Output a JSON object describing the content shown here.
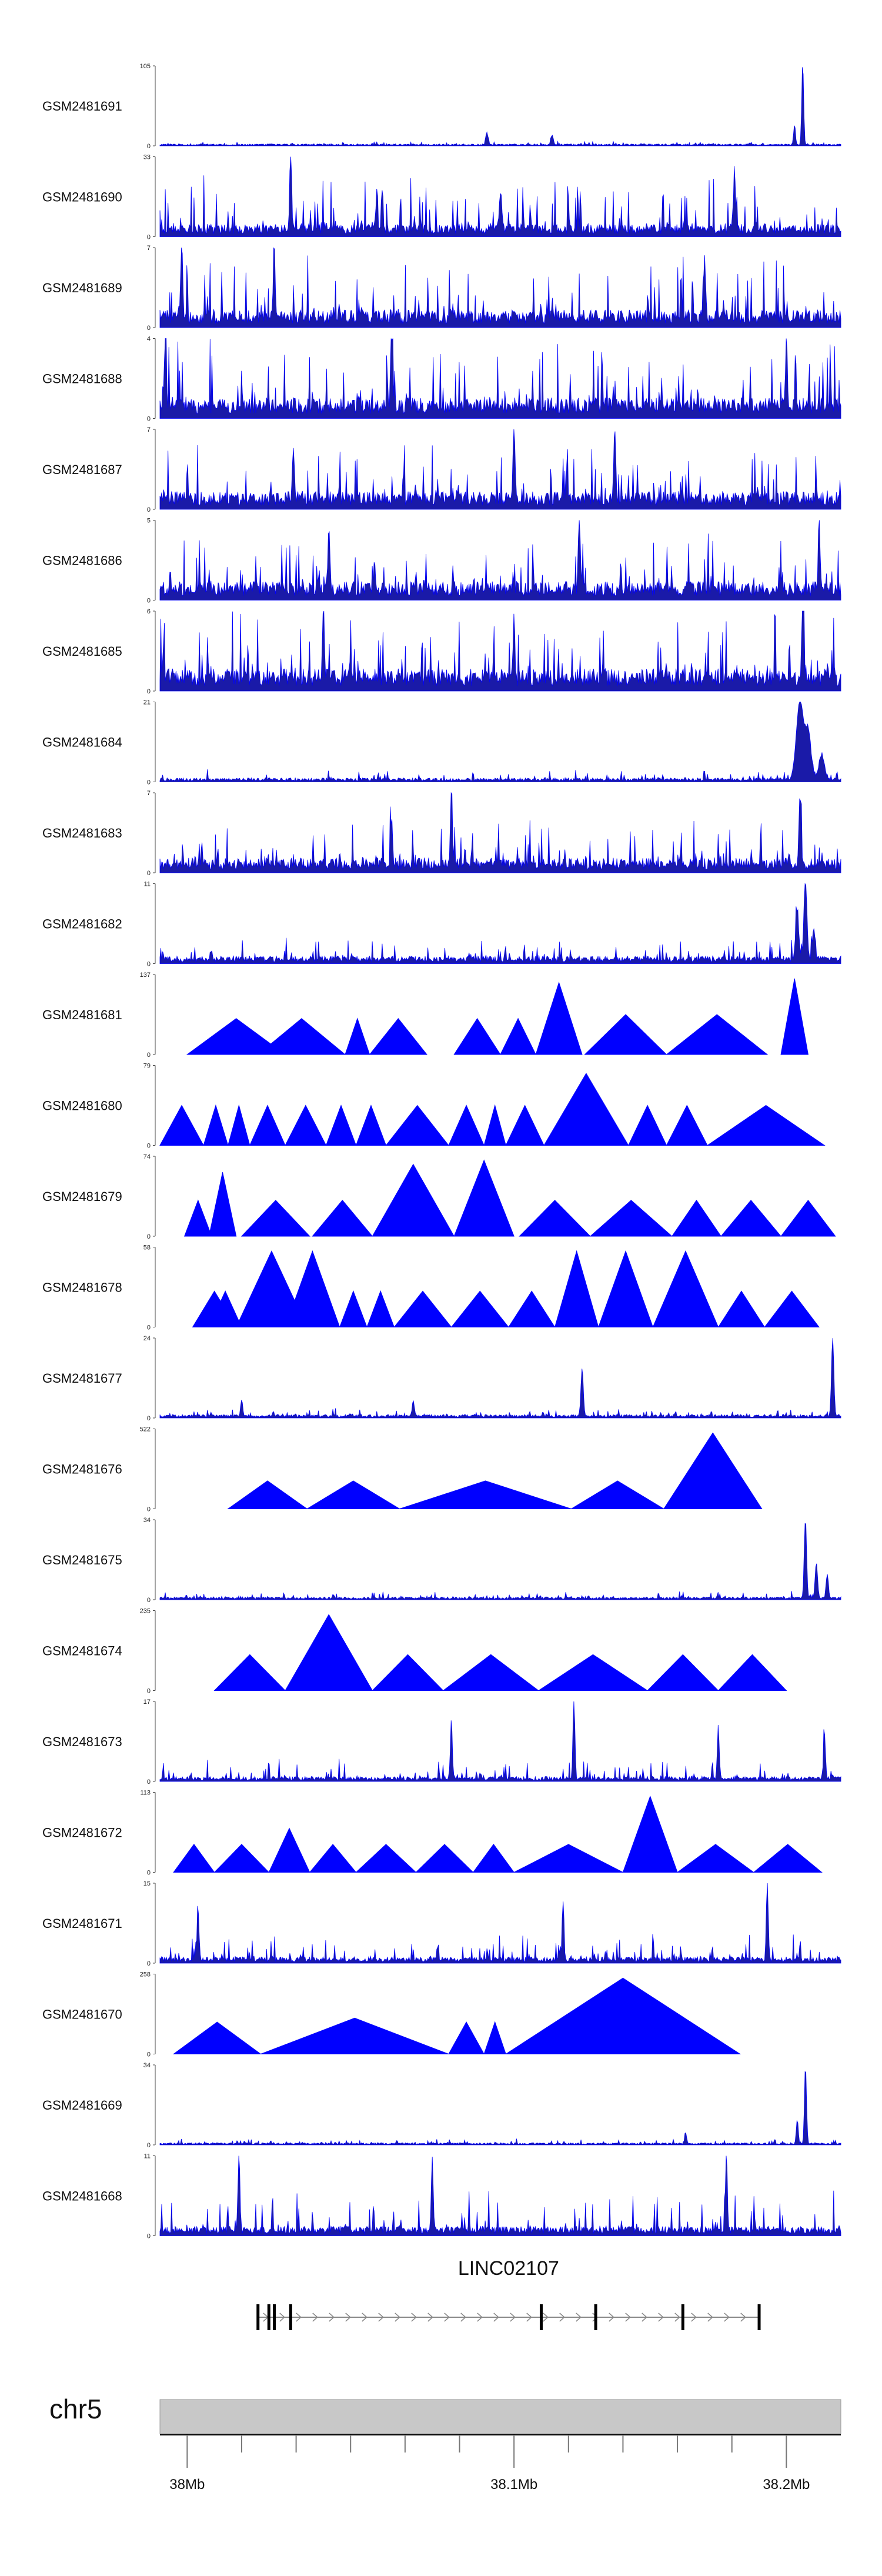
{
  "chart_data": {
    "type": "area",
    "title": "",
    "region": {
      "chromosome": "chr5",
      "start_mb": 37.97,
      "end_mb": 38.22
    },
    "tracks": [
      {
        "name": "GSM2481691",
        "ymax": 105,
        "style": "dense",
        "baseline": 2,
        "noise": 4,
        "seed": 11,
        "peaks": [
          [
            38.206,
            1.0,
            0.0005
          ],
          [
            38.203,
            0.25,
            0.0005
          ],
          [
            38.09,
            0.15,
            0.0006
          ],
          [
            38.114,
            0.12,
            0.0006
          ]
        ]
      },
      {
        "name": "GSM2481690",
        "ymax": 33,
        "style": "dense",
        "baseline": 4,
        "noise": 22,
        "seed": 12,
        "peaks": [
          [
            38.018,
            1.0,
            0.0005
          ],
          [
            38.181,
            0.65,
            0.0006
          ],
          [
            38.095,
            0.5,
            0.0006
          ]
        ]
      },
      {
        "name": "GSM2481689",
        "ymax": 7,
        "style": "dense",
        "baseline": 1.2,
        "noise": 5,
        "seed": 13,
        "peaks": [
          [
            37.978,
            1.0,
            0.0005
          ],
          [
            38.012,
            0.85,
            0.0005
          ],
          [
            38.17,
            0.7,
            0.0005
          ]
        ]
      },
      {
        "name": "GSM2481688",
        "ymax": 4,
        "style": "dense",
        "baseline": 0.8,
        "noise": 3.5,
        "seed": 14,
        "peaks": [
          [
            37.972,
            1.0,
            0.0005
          ],
          [
            38.055,
            0.9,
            0.0005
          ],
          [
            38.2,
            0.85,
            0.0005
          ]
        ]
      },
      {
        "name": "GSM2481687",
        "ymax": 7,
        "style": "dense",
        "baseline": 1.2,
        "noise": 4.5,
        "seed": 15,
        "peaks": [
          [
            38.1,
            1.0,
            0.0005
          ],
          [
            38.137,
            0.95,
            0.0005
          ],
          [
            38.019,
            0.7,
            0.0005
          ]
        ]
      },
      {
        "name": "GSM2481686",
        "ymax": 5,
        "style": "dense",
        "baseline": 0.9,
        "noise": 3.2,
        "seed": 16,
        "peaks": [
          [
            38.124,
            1.0,
            0.0005
          ],
          [
            38.212,
            0.9,
            0.0005
          ],
          [
            38.032,
            0.8,
            0.0005
          ]
        ]
      },
      {
        "name": "GSM2481685",
        "ymax": 6,
        "style": "dense",
        "baseline": 1.3,
        "noise": 4.5,
        "seed": 17,
        "peaks": [
          [
            38.206,
            1.0,
            0.0005
          ],
          [
            38.03,
            0.9,
            0.0005
          ],
          [
            38.1,
            0.75,
            0.0005
          ]
        ]
      },
      {
        "name": "GSM2481684",
        "ymax": 21,
        "style": "dense",
        "baseline": 0.8,
        "noise": 2.5,
        "seed": 18,
        "peaks": [
          [
            38.205,
            1.0,
            0.0018
          ],
          [
            38.208,
            0.6,
            0.0015
          ],
          [
            38.213,
            0.3,
            0.0015
          ]
        ]
      },
      {
        "name": "GSM2481683",
        "ymax": 7,
        "style": "dense",
        "baseline": 1.0,
        "noise": 3.5,
        "seed": 19,
        "peaks": [
          [
            38.077,
            1.0,
            0.0005
          ],
          [
            38.205,
            0.9,
            0.0006
          ],
          [
            38.055,
            0.6,
            0.0005
          ]
        ]
      },
      {
        "name": "GSM2481682",
        "ymax": 11,
        "style": "dense",
        "baseline": 0.8,
        "noise": 2.8,
        "seed": 20,
        "peaks": [
          [
            38.207,
            1.0,
            0.0008
          ],
          [
            38.204,
            0.6,
            0.0008
          ],
          [
            38.21,
            0.4,
            0.0007
          ]
        ]
      },
      {
        "name": "GSM2481681",
        "ymax": 137,
        "style": "sparse",
        "spikes": [
          [
            37.98,
            38.016,
            0.45
          ],
          [
            38.006,
            38.038,
            0.45
          ],
          [
            38.038,
            38.047,
            0.45
          ],
          [
            38.047,
            38.068,
            0.45
          ],
          [
            38.078,
            38.095,
            0.45
          ],
          [
            38.095,
            38.108,
            0.45
          ],
          [
            38.108,
            38.125,
            0.9
          ],
          [
            38.126,
            38.156,
            0.5
          ],
          [
            38.156,
            38.193,
            0.5
          ],
          [
            38.198,
            38.208,
            0.95
          ]
        ]
      },
      {
        "name": "GSM2481680",
        "ymax": 79,
        "style": "sparse",
        "spikes": [
          [
            37.97,
            37.986,
            0.5
          ],
          [
            37.986,
            37.995,
            0.5
          ],
          [
            37.995,
            38.003,
            0.5
          ],
          [
            38.003,
            38.016,
            0.5
          ],
          [
            38.016,
            38.031,
            0.5
          ],
          [
            38.031,
            38.042,
            0.5
          ],
          [
            38.042,
            38.053,
            0.5
          ],
          [
            38.053,
            38.076,
            0.5
          ],
          [
            38.076,
            38.089,
            0.5
          ],
          [
            38.089,
            38.097,
            0.5
          ],
          [
            38.097,
            38.111,
            0.5
          ],
          [
            38.111,
            38.142,
            0.9
          ],
          [
            38.142,
            38.156,
            0.5
          ],
          [
            38.156,
            38.171,
            0.5
          ],
          [
            38.171,
            38.214,
            0.5
          ]
        ]
      },
      {
        "name": "GSM2481679",
        "ymax": 74,
        "style": "sparse",
        "spikes": [
          [
            37.979,
            37.989,
            0.45
          ],
          [
            37.988,
            37.998,
            0.8
          ],
          [
            38.0,
            38.025,
            0.45
          ],
          [
            38.026,
            38.048,
            0.45
          ],
          [
            38.048,
            38.078,
            0.9
          ],
          [
            38.078,
            38.1,
            0.95
          ],
          [
            38.102,
            38.128,
            0.45
          ],
          [
            38.128,
            38.158,
            0.45
          ],
          [
            38.158,
            38.176,
            0.45
          ],
          [
            38.176,
            38.198,
            0.45
          ],
          [
            38.198,
            38.218,
            0.45
          ]
        ]
      },
      {
        "name": "GSM2481678",
        "ymax": 58,
        "style": "sparse",
        "spikes": [
          [
            37.982,
            37.998,
            0.45
          ],
          [
            37.988,
            38.0,
            0.45
          ],
          [
            37.998,
            38.024,
            0.95
          ],
          [
            38.005,
            38.016,
            0.65
          ],
          [
            38.016,
            38.036,
            0.95
          ],
          [
            38.036,
            38.046,
            0.45
          ],
          [
            38.046,
            38.056,
            0.45
          ],
          [
            38.056,
            38.077,
            0.45
          ],
          [
            38.077,
            38.098,
            0.45
          ],
          [
            38.098,
            38.115,
            0.45
          ],
          [
            38.115,
            38.131,
            0.95
          ],
          [
            38.131,
            38.151,
            0.95
          ],
          [
            38.151,
            38.175,
            0.95
          ],
          [
            38.175,
            38.192,
            0.45
          ],
          [
            38.192,
            38.212,
            0.45
          ]
        ]
      },
      {
        "name": "GSM2481677",
        "ymax": 24,
        "style": "dense",
        "baseline": 0.8,
        "noise": 2.0,
        "seed": 25,
        "peaks": [
          [
            38.217,
            1.0,
            0.0006
          ],
          [
            38.125,
            0.6,
            0.0006
          ],
          [
            38.0,
            0.2,
            0.0005
          ],
          [
            38.063,
            0.2,
            0.0005
          ]
        ]
      },
      {
        "name": "GSM2481676",
        "ymax": 522,
        "style": "sparse",
        "spikes": [
          [
            37.995,
            38.024,
            0.35
          ],
          [
            38.024,
            38.058,
            0.35
          ],
          [
            38.058,
            38.121,
            0.35
          ],
          [
            38.121,
            38.155,
            0.35
          ],
          [
            38.155,
            38.191,
            0.95
          ]
        ]
      },
      {
        "name": "GSM2481675",
        "ymax": 34,
        "style": "dense",
        "baseline": 0.9,
        "noise": 2.8,
        "seed": 27,
        "peaks": [
          [
            38.207,
            1.0,
            0.0006
          ],
          [
            38.211,
            0.45,
            0.0006
          ],
          [
            38.215,
            0.3,
            0.0006
          ]
        ]
      },
      {
        "name": "GSM2481674",
        "ymax": 235,
        "style": "sparse",
        "spikes": [
          [
            37.99,
            38.016,
            0.45
          ],
          [
            38.016,
            38.048,
            0.95
          ],
          [
            38.048,
            38.074,
            0.45
          ],
          [
            38.074,
            38.109,
            0.45
          ],
          [
            38.109,
            38.149,
            0.45
          ],
          [
            38.149,
            38.175,
            0.45
          ],
          [
            38.175,
            38.2,
            0.45
          ]
        ]
      },
      {
        "name": "GSM2481673",
        "ymax": 17,
        "style": "dense",
        "baseline": 0.8,
        "noise": 4.0,
        "seed": 29,
        "peaks": [
          [
            38.122,
            1.0,
            0.0005
          ],
          [
            38.077,
            0.75,
            0.0005
          ],
          [
            38.175,
            0.65,
            0.0005
          ],
          [
            38.214,
            0.55,
            0.0005
          ]
        ]
      },
      {
        "name": "GSM2481672",
        "ymax": 113,
        "style": "sparse",
        "spikes": [
          [
            37.975,
            37.99,
            0.35
          ],
          [
            37.99,
            38.01,
            0.35
          ],
          [
            38.01,
            38.025,
            0.55
          ],
          [
            38.025,
            38.042,
            0.35
          ],
          [
            38.042,
            38.064,
            0.35
          ],
          [
            38.064,
            38.085,
            0.35
          ],
          [
            38.085,
            38.1,
            0.35
          ],
          [
            38.1,
            38.14,
            0.35
          ],
          [
            38.14,
            38.16,
            0.95
          ],
          [
            38.16,
            38.188,
            0.35
          ],
          [
            38.188,
            38.213,
            0.35
          ]
        ]
      },
      {
        "name": "GSM2481671",
        "ymax": 15,
        "style": "dense",
        "baseline": 0.9,
        "noise": 5.0,
        "seed": 31,
        "peaks": [
          [
            38.193,
            1.0,
            0.0005
          ],
          [
            38.118,
            0.7,
            0.0005
          ],
          [
            37.984,
            0.65,
            0.0005
          ]
        ]
      },
      {
        "name": "GSM2481670",
        "ymax": 258,
        "style": "sparse",
        "spikes": [
          [
            37.975,
            38.007,
            0.4
          ],
          [
            38.007,
            38.076,
            0.45
          ],
          [
            38.076,
            38.089,
            0.4
          ],
          [
            38.089,
            38.097,
            0.4
          ],
          [
            38.097,
            38.183,
            0.95
          ]
        ]
      },
      {
        "name": "GSM2481669",
        "ymax": 34,
        "style": "dense",
        "baseline": 0.7,
        "noise": 1.8,
        "seed": 33,
        "peaks": [
          [
            38.207,
            1.0,
            0.0005
          ],
          [
            38.204,
            0.3,
            0.0005
          ],
          [
            38.163,
            0.15,
            0.0005
          ]
        ]
      },
      {
        "name": "GSM2481668",
        "ymax": 11,
        "style": "dense",
        "baseline": 1.0,
        "noise": 5.5,
        "seed": 34,
        "peaks": [
          [
            37.999,
            1.0,
            0.0005
          ],
          [
            38.07,
            0.9,
            0.0005
          ],
          [
            38.178,
            0.95,
            0.0005
          ]
        ]
      }
    ],
    "gene": {
      "name": "LINC02107",
      "start_mb": 38.006,
      "end_mb": 38.19,
      "strand": "+",
      "exons": [
        38.006,
        38.01,
        38.012,
        38.018,
        38.11,
        38.13,
        38.162,
        38.19
      ]
    },
    "axis": {
      "ticks": [
        37.98,
        38.0,
        38.02,
        38.04,
        38.06,
        38.08,
        38.1,
        38.12,
        38.14,
        38.16,
        38.18,
        38.2
      ],
      "labels": [
        {
          "mb": 37.98,
          "text": "38Mb"
        },
        {
          "mb": 38.1,
          "text": "38.1Mb"
        },
        {
          "mb": 38.2,
          "text": "38.2Mb"
        }
      ]
    },
    "colors": {
      "signal": "#0000ff",
      "signal_dark": "#1a1aa8",
      "ideogram": "#c8c8c8",
      "axis": "#000000"
    }
  }
}
